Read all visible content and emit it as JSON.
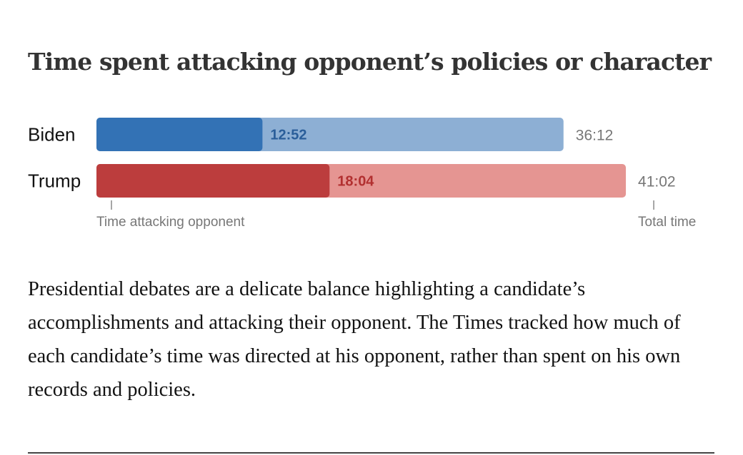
{
  "title": "Time spent attacking opponent’s policies or character",
  "description": "Presidential debates are a delicate balance highlighting a candidate’s accomplishments and attacking their opponent. The Times tracked how much of each candidate’s time was directed at his opponent, rather than spent on his own records and policies.",
  "chart_data": {
    "type": "bar",
    "orientation": "horizontal",
    "stacked": "overlay",
    "categories": [
      "Biden",
      "Trump"
    ],
    "units": "minutes:seconds",
    "series": [
      {
        "name": "Time attacking opponent",
        "values": [
          12.867,
          18.067
        ],
        "labels": [
          "12:52",
          "18:04"
        ]
      },
      {
        "name": "Total time",
        "values": [
          36.2,
          41.033
        ],
        "labels": [
          "36:12",
          "41:02"
        ]
      }
    ],
    "colors": {
      "Biden": {
        "attack": "#3372b5",
        "total": "#8dafd4",
        "label": "#2a5e9a"
      },
      "Trump": {
        "attack": "#bc3d3d",
        "total": "#e59592",
        "label": "#b23030"
      }
    },
    "annotation_color": "#777777",
    "grid": false,
    "legend": "annotations below bars"
  }
}
